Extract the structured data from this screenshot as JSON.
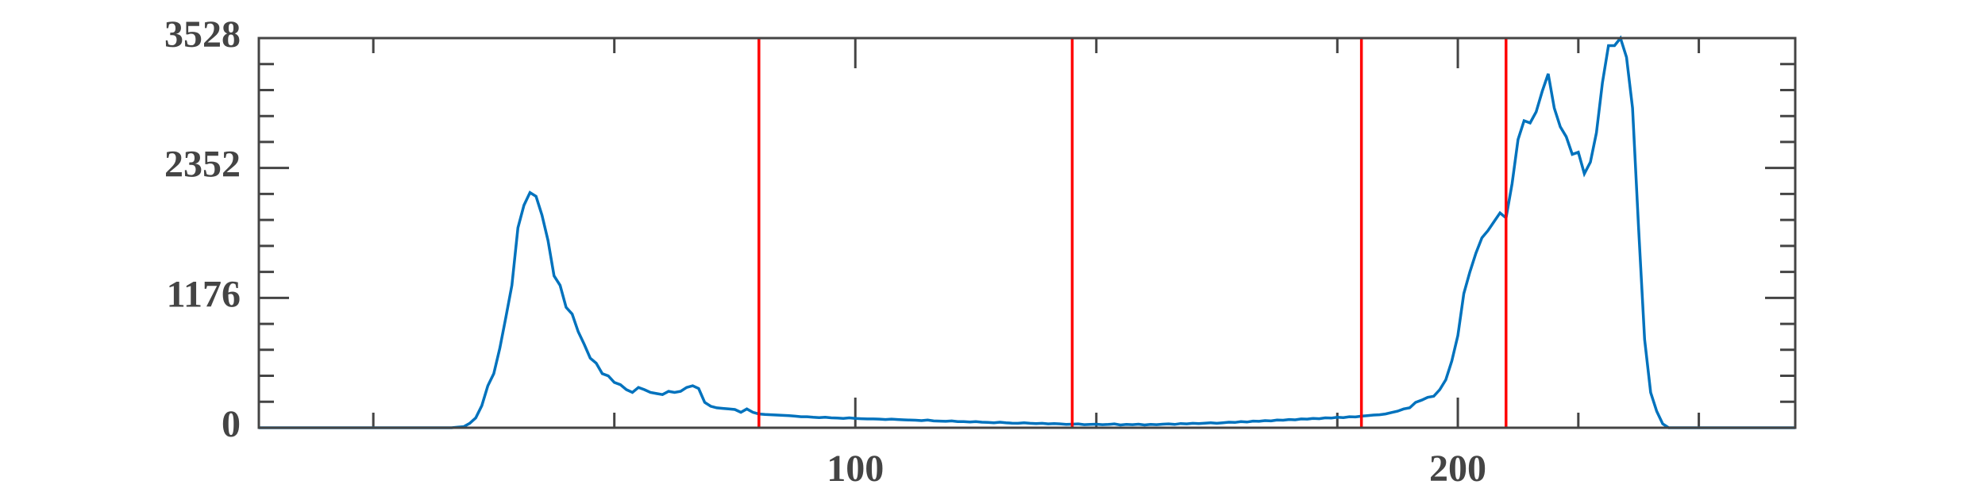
{
  "chart_data": {
    "type": "line",
    "color": "#0072bd",
    "xlim": [
      1,
      256
    ],
    "xticks": [
      100,
      200
    ],
    "xminorticks": [
      20,
      60,
      140,
      180,
      220,
      240
    ],
    "ylim": [
      0,
      3528
    ],
    "yticks": [
      0,
      1176,
      2352,
      3528
    ],
    "yminor": 5,
    "vlines": [
      84,
      136,
      184,
      208
    ],
    "vline_color": "#ff0000",
    "x": [
      1,
      2,
      3,
      4,
      5,
      6,
      7,
      8,
      9,
      10,
      11,
      12,
      13,
      14,
      15,
      16,
      17,
      18,
      19,
      20,
      21,
      22,
      23,
      24,
      25,
      26,
      27,
      28,
      29,
      30,
      31,
      32,
      33,
      34,
      35,
      36,
      37,
      38,
      39,
      40,
      41,
      42,
      43,
      44,
      45,
      46,
      47,
      48,
      49,
      50,
      51,
      52,
      53,
      54,
      55,
      56,
      57,
      58,
      59,
      60,
      61,
      62,
      63,
      64,
      65,
      66,
      67,
      68,
      69,
      70,
      71,
      72,
      73,
      74,
      75,
      76,
      77,
      78,
      79,
      80,
      81,
      82,
      83,
      84,
      85,
      86,
      87,
      88,
      89,
      90,
      91,
      92,
      93,
      94,
      95,
      96,
      97,
      98,
      99,
      100,
      101,
      102,
      103,
      104,
      105,
      106,
      107,
      108,
      109,
      110,
      111,
      112,
      113,
      114,
      115,
      116,
      117,
      118,
      119,
      120,
      121,
      122,
      123,
      124,
      125,
      126,
      127,
      128,
      129,
      130,
      131,
      132,
      133,
      134,
      135,
      136,
      137,
      138,
      139,
      140,
      141,
      142,
      143,
      144,
      145,
      146,
      147,
      148,
      149,
      150,
      151,
      152,
      153,
      154,
      155,
      156,
      157,
      158,
      159,
      160,
      161,
      162,
      163,
      164,
      165,
      166,
      167,
      168,
      169,
      170,
      171,
      172,
      173,
      174,
      175,
      176,
      177,
      178,
      179,
      180,
      181,
      182,
      183,
      184,
      185,
      186,
      187,
      188,
      189,
      190,
      191,
      192,
      193,
      194,
      195,
      196,
      197,
      198,
      199,
      200,
      201,
      202,
      203,
      204,
      205,
      206,
      207,
      208,
      209,
      210,
      211,
      212,
      213,
      214,
      215,
      216,
      217,
      218,
      219,
      220,
      221,
      222,
      223,
      224,
      225,
      226,
      227,
      228,
      229,
      230,
      231,
      232,
      233,
      234,
      235,
      236,
      237,
      238,
      239,
      240,
      241,
      242,
      243,
      244,
      245,
      246,
      247,
      248,
      249,
      250,
      251,
      252,
      253,
      254,
      255,
      256
    ],
    "values": [
      0,
      0,
      0,
      0,
      0,
      0,
      0,
      0,
      0,
      0,
      0,
      0,
      0,
      0,
      0,
      0,
      0,
      0,
      0,
      0,
      0,
      0,
      0,
      0,
      0,
      0,
      0,
      0,
      0,
      0,
      0,
      0,
      0,
      5,
      10,
      40,
      90,
      200,
      380,
      490,
      720,
      1000,
      1290,
      1810,
      2015,
      2130,
      2095,
      1925,
      1695,
      1375,
      1290,
      1090,
      1030,
      870,
      755,
      630,
      585,
      490,
      470,
      410,
      390,
      345,
      320,
      365,
      345,
      320,
      310,
      300,
      330,
      320,
      330,
      365,
      380,
      355,
      230,
      195,
      180,
      175,
      170,
      165,
      140,
      170,
      140,
      125,
      120,
      118,
      115,
      112,
      110,
      105,
      100,
      100,
      95,
      92,
      95,
      90,
      88,
      85,
      90,
      85,
      82,
      80,
      80,
      78,
      75,
      78,
      75,
      72,
      70,
      68,
      65,
      70,
      62,
      60,
      58,
      62,
      55,
      55,
      52,
      55,
      50,
      48,
      45,
      50,
      45,
      42,
      40,
      45,
      40,
      38,
      40,
      35,
      38,
      35,
      30,
      32,
      35,
      28,
      30,
      32,
      28,
      30,
      35,
      25,
      30,
      28,
      32,
      25,
      30,
      28,
      32,
      35,
      30,
      38,
      35,
      40,
      38,
      42,
      45,
      40,
      45,
      50,
      48,
      55,
      52,
      60,
      58,
      65,
      62,
      70,
      68,
      75,
      72,
      80,
      78,
      85,
      82,
      90,
      88,
      95,
      92,
      100,
      98,
      105,
      110,
      115,
      118,
      125,
      138,
      150,
      170,
      180,
      230,
      250,
      275,
      285,
      345,
      435,
      605,
      835,
      1215,
      1410,
      1580,
      1720,
      1785,
      1865,
      1945,
      1900,
      2210,
      2610,
      2780,
      2760,
      2860,
      3045,
      3205,
      2895,
      2725,
      2635,
      2475,
      2495,
      2300,
      2405,
      2670,
      3125,
      3460,
      3460,
      3528,
      3355,
      2895,
      1810,
      800,
      320,
      150,
      35,
      0,
      0,
      0,
      0,
      0,
      0,
      0,
      0,
      0,
      0,
      0,
      0,
      0,
      0,
      0,
      0,
      0,
      0,
      0,
      0,
      0,
      0
    ]
  }
}
